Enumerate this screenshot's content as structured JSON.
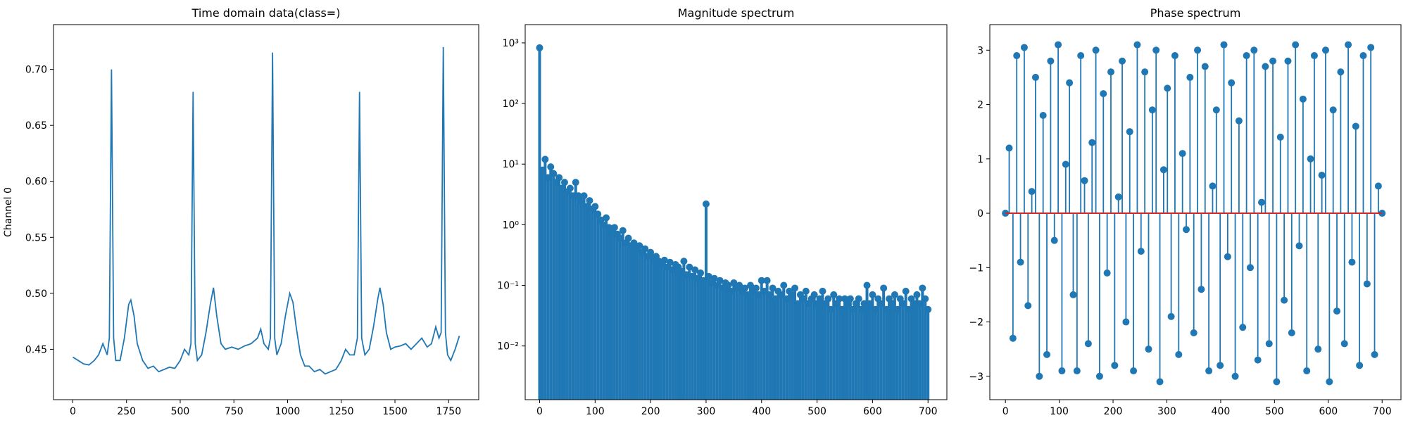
{
  "chart_data": [
    {
      "type": "line",
      "title": "Time domain data(class=)",
      "ylabel": "Channel 0",
      "color": "#1f77b4",
      "x": [
        0,
        25,
        50,
        75,
        100,
        120,
        140,
        160,
        170,
        180,
        190,
        200,
        220,
        240,
        260,
        270,
        285,
        300,
        325,
        350,
        375,
        400,
        425,
        450,
        475,
        500,
        520,
        540,
        550,
        560,
        570,
        580,
        600,
        620,
        640,
        655,
        670,
        690,
        710,
        740,
        770,
        800,
        830,
        860,
        875,
        890,
        910,
        920,
        930,
        940,
        950,
        970,
        990,
        1010,
        1025,
        1040,
        1060,
        1080,
        1100,
        1125,
        1150,
        1175,
        1200,
        1225,
        1250,
        1270,
        1290,
        1310,
        1325,
        1335,
        1345,
        1360,
        1380,
        1400,
        1420,
        1430,
        1445,
        1460,
        1480,
        1500,
        1525,
        1550,
        1575,
        1600,
        1625,
        1650,
        1670,
        1690,
        1705,
        1715,
        1725,
        1735,
        1745,
        1760,
        1780,
        1800
      ],
      "values": [
        0.443,
        0.44,
        0.437,
        0.436,
        0.44,
        0.445,
        0.455,
        0.445,
        0.46,
        0.7,
        0.46,
        0.44,
        0.44,
        0.46,
        0.49,
        0.494,
        0.48,
        0.455,
        0.44,
        0.433,
        0.435,
        0.43,
        0.432,
        0.434,
        0.433,
        0.44,
        0.45,
        0.445,
        0.455,
        0.68,
        0.455,
        0.44,
        0.445,
        0.465,
        0.49,
        0.505,
        0.48,
        0.455,
        0.45,
        0.452,
        0.45,
        0.453,
        0.455,
        0.46,
        0.468,
        0.455,
        0.45,
        0.46,
        0.715,
        0.46,
        0.445,
        0.455,
        0.48,
        0.5,
        0.492,
        0.47,
        0.445,
        0.435,
        0.435,
        0.43,
        0.432,
        0.428,
        0.43,
        0.432,
        0.44,
        0.45,
        0.445,
        0.445,
        0.46,
        0.68,
        0.46,
        0.445,
        0.45,
        0.47,
        0.495,
        0.505,
        0.49,
        0.465,
        0.45,
        0.452,
        0.453,
        0.455,
        0.45,
        0.455,
        0.46,
        0.452,
        0.455,
        0.47,
        0.46,
        0.465,
        0.72,
        0.465,
        0.445,
        0.44,
        0.45,
        0.462
      ],
      "xlim": [
        -90,
        1890
      ],
      "ylim": [
        0.405,
        0.74
      ],
      "xticks": [
        0,
        250,
        500,
        750,
        1000,
        1250,
        1500,
        1750
      ],
      "yticks": [
        0.45,
        {
          "value": 0.5,
          "label": "0.50"
        },
        0.55,
        {
          "value": 0.6,
          "label": "0.60"
        },
        0.65,
        {
          "value": 0.7,
          "label": "0.70"
        }
      ]
    },
    {
      "type": "stem",
      "title": "Magnitude spectrum",
      "yscale": "log",
      "color": "#1f77b4",
      "x": [
        0,
        5,
        10,
        15,
        20,
        25,
        30,
        35,
        40,
        45,
        50,
        55,
        60,
        65,
        70,
        75,
        80,
        85,
        90,
        95,
        100,
        105,
        110,
        115,
        120,
        125,
        130,
        135,
        140,
        145,
        150,
        155,
        160,
        165,
        170,
        175,
        180,
        185,
        190,
        195,
        200,
        205,
        210,
        215,
        220,
        225,
        230,
        235,
        240,
        245,
        250,
        255,
        260,
        265,
        270,
        275,
        280,
        285,
        290,
        295,
        300,
        305,
        310,
        315,
        320,
        325,
        330,
        335,
        340,
        345,
        350,
        355,
        360,
        365,
        370,
        375,
        380,
        385,
        390,
        395,
        400,
        405,
        410,
        415,
        420,
        425,
        430,
        435,
        440,
        445,
        450,
        455,
        460,
        465,
        470,
        475,
        480,
        485,
        490,
        495,
        500,
        505,
        510,
        515,
        520,
        525,
        530,
        535,
        540,
        545,
        550,
        555,
        560,
        565,
        570,
        575,
        580,
        585,
        590,
        595,
        600,
        605,
        610,
        615,
        620,
        625,
        630,
        635,
        640,
        645,
        650,
        655,
        660,
        665,
        670,
        675,
        680,
        685,
        690,
        695,
        700
      ],
      "values": [
        830,
        8,
        12,
        6,
        9,
        7,
        5,
        6,
        4,
        5,
        3.5,
        4,
        3,
        5,
        3,
        2.5,
        3,
        2,
        2.5,
        1.8,
        2,
        1.5,
        1.2,
        1,
        1.3,
        0.9,
        0.8,
        0.9,
        0.7,
        0.6,
        0.8,
        0.5,
        0.6,
        0.45,
        0.5,
        0.4,
        0.45,
        0.35,
        0.4,
        0.3,
        0.35,
        0.28,
        0.3,
        0.25,
        0.22,
        0.26,
        0.2,
        0.24,
        0.18,
        0.22,
        0.2,
        0.17,
        0.25,
        0.15,
        0.2,
        0.14,
        0.18,
        0.13,
        0.16,
        0.12,
        2.2,
        0.14,
        0.11,
        0.13,
        0.1,
        0.12,
        0.09,
        0.11,
        0.1,
        0.08,
        0.11,
        0.09,
        0.1,
        0.08,
        0.09,
        0.07,
        0.1,
        0.08,
        0.09,
        0.07,
        0.12,
        0.08,
        0.12,
        0.07,
        0.09,
        0.06,
        0.08,
        0.07,
        0.1,
        0.06,
        0.08,
        0.07,
        0.09,
        0.05,
        0.07,
        0.06,
        0.08,
        0.05,
        0.06,
        0.07,
        0.05,
        0.06,
        0.08,
        0.05,
        0.06,
        0.04,
        0.07,
        0.05,
        0.06,
        0.04,
        0.06,
        0.05,
        0.06,
        0.04,
        0.05,
        0.06,
        0.04,
        0.05,
        0.1,
        0.05,
        0.07,
        0.04,
        0.06,
        0.05,
        0.09,
        0.04,
        0.06,
        0.05,
        0.07,
        0.04,
        0.06,
        0.05,
        0.08,
        0.04,
        0.06,
        0.05,
        0.07,
        0.05,
        0.09,
        0.06,
        0.04
      ],
      "xlim": [
        -26,
        734
      ],
      "ylim": [
        0.0013,
        2000
      ],
      "xticks": [
        0,
        100,
        200,
        300,
        400,
        500,
        600,
        700
      ],
      "yticks": [
        {
          "value": 0.01,
          "label": "10⁻²"
        },
        {
          "value": 0.1,
          "label": "10⁻¹"
        },
        {
          "value": 1,
          "label": "10⁰"
        },
        {
          "value": 10,
          "label": "10¹"
        },
        {
          "value": 100,
          "label": "10²"
        },
        {
          "value": 1000,
          "label": "10³"
        }
      ]
    },
    {
      "type": "stem",
      "title": "Phase spectrum",
      "color": "#1f77b4",
      "baseline_color": "#d62728",
      "x": [
        0,
        7,
        14,
        21,
        28,
        35,
        42,
        49,
        56,
        63,
        70,
        77,
        84,
        91,
        98,
        105,
        112,
        119,
        126,
        133,
        140,
        147,
        154,
        161,
        168,
        175,
        182,
        189,
        196,
        203,
        210,
        217,
        224,
        231,
        238,
        245,
        252,
        259,
        266,
        273,
        280,
        287,
        294,
        301,
        308,
        315,
        322,
        329,
        336,
        343,
        350,
        357,
        364,
        371,
        378,
        385,
        392,
        399,
        406,
        413,
        420,
        427,
        434,
        441,
        448,
        455,
        462,
        469,
        476,
        483,
        490,
        497,
        504,
        511,
        518,
        525,
        532,
        539,
        546,
        553,
        560,
        567,
        574,
        581,
        588,
        595,
        602,
        609,
        616,
        623,
        630,
        637,
        644,
        651,
        658,
        665,
        672,
        679,
        686,
        693,
        700
      ],
      "values": [
        0,
        1.2,
        -2.3,
        2.9,
        -0.9,
        3.05,
        -1.7,
        0.4,
        2.5,
        -3.0,
        1.8,
        -2.6,
        2.8,
        -0.5,
        3.1,
        -2.9,
        0.9,
        2.4,
        -1.5,
        -2.9,
        2.9,
        0.6,
        -2.4,
        1.3,
        3.0,
        -3.0,
        2.2,
        -1.1,
        2.6,
        -2.8,
        0.3,
        2.8,
        -2.0,
        1.5,
        -2.9,
        3.1,
        -0.7,
        2.6,
        -2.5,
        1.9,
        3.0,
        -3.1,
        0.8,
        2.3,
        -1.9,
        2.9,
        -2.6,
        1.1,
        -0.3,
        2.5,
        -2.2,
        3.0,
        -1.4,
        2.7,
        -2.9,
        0.5,
        1.9,
        -2.8,
        3.1,
        -0.8,
        2.4,
        -3.0,
        1.7,
        -2.1,
        2.9,
        -1.0,
        3.0,
        -2.7,
        0.2,
        2.7,
        -2.4,
        2.8,
        -3.1,
        1.4,
        -1.6,
        2.8,
        -2.2,
        3.1,
        -0.6,
        2.1,
        -2.9,
        1.0,
        2.9,
        -2.5,
        0.7,
        3.0,
        -3.1,
        1.9,
        -1.8,
        2.6,
        -2.4,
        3.1,
        -0.9,
        1.6,
        -2.8,
        2.9,
        -1.3,
        3.05,
        -2.6,
        0.5,
        0.0
      ],
      "xlim": [
        -29,
        735
      ],
      "ylim": [
        -3.43,
        3.47
      ],
      "xticks": [
        0,
        100,
        200,
        300,
        400,
        500,
        600,
        700
      ],
      "yticks": [
        {
          "value": -3,
          "label": "−3"
        },
        {
          "value": -2,
          "label": "−2"
        },
        {
          "value": -1,
          "label": "−1"
        },
        0,
        1,
        2,
        3
      ]
    }
  ]
}
